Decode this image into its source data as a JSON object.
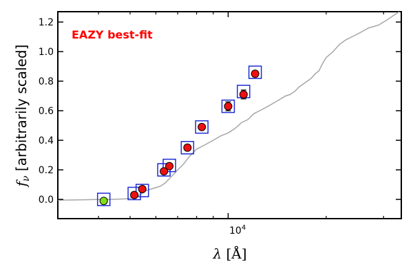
{
  "chart_data": {
    "type": "scatter",
    "title": "",
    "annotation": "EAZY best-fit",
    "annotation_color": "#ff0000",
    "xlabel": "λ [Å]",
    "ylabel": "f_ν [arbitrarily scaled]",
    "ylabel_main": "f",
    "ylabel_sub": "ν",
    "ylabel_rest": " [arbitrarily scaled]",
    "xlabel_lambda": "λ",
    "xlabel_unit": " [Å]",
    "xscale": "log",
    "xlim": [
      3000,
      34000
    ],
    "ylim": [
      -0.13,
      1.27
    ],
    "yticks": [
      0.0,
      0.2,
      0.4,
      0.6,
      0.8,
      1.0,
      1.2
    ],
    "ytick_labels": [
      "0.0",
      "0.2",
      "0.4",
      "0.6",
      "0.8",
      "1.0",
      "1.2"
    ],
    "xtick_major": [
      10000
    ],
    "xtick_major_base": "10",
    "xtick_major_exp": "4",
    "xtick_minor": [
      4000,
      5000,
      6000,
      7000,
      8000,
      9000,
      20000,
      30000
    ],
    "grid": false,
    "colors": {
      "model_line": "#a6a6a6",
      "template_box": "#1f2bd6",
      "detection": "#ee1111",
      "nondetection": "#7fe01a",
      "marker_edge": "#000000"
    },
    "model_sed": {
      "x": [
        3000,
        3300,
        3700,
        4000,
        4300,
        4600,
        4800,
        5000,
        5200,
        5400,
        5600,
        5800,
        6000,
        6200,
        6400,
        6600,
        6800,
        7000,
        7300,
        7600,
        8000,
        8500,
        9000,
        9500,
        10000,
        10500,
        11000,
        11500,
        12000,
        12500,
        13000,
        14000,
        15000,
        15500,
        16000,
        16500,
        17000,
        17500,
        18000,
        18500,
        19000,
        19500,
        20000,
        21000,
        22000,
        23000,
        24000,
        25000,
        26000,
        27000,
        28000,
        29000,
        30000,
        31000,
        32000,
        33000,
        34000
      ],
      "y": [
        -0.005,
        -0.004,
        -0.002,
        0.0,
        0.0,
        0.002,
        0.003,
        0.008,
        0.018,
        0.035,
        0.06,
        0.07,
        0.08,
        0.09,
        0.11,
        0.14,
        0.17,
        0.2,
        0.24,
        0.29,
        0.34,
        0.37,
        0.4,
        0.43,
        0.45,
        0.48,
        0.52,
        0.54,
        0.58,
        0.6,
        0.62,
        0.66,
        0.7,
        0.71,
        0.73,
        0.76,
        0.78,
        0.8,
        0.82,
        0.85,
        0.87,
        0.92,
        0.96,
        1.0,
        1.05,
        1.08,
        1.1,
        1.12,
        1.14,
        1.16,
        1.17,
        1.18,
        1.2,
        1.22,
        1.24,
        1.26,
        1.28
      ]
    },
    "template_fluxes": {
      "x": [
        4150,
        5150,
        5450,
        6350,
        6600,
        7500,
        8300,
        10000,
        11150,
        12100
      ],
      "y": [
        0.0,
        0.04,
        0.06,
        0.2,
        0.23,
        0.35,
        0.49,
        0.63,
        0.73,
        0.86
      ]
    },
    "observed_fluxes": {
      "x": [
        5150,
        5450,
        6350,
        6600,
        7500,
        8300,
        10000,
        11150,
        12100
      ],
      "y": [
        0.03,
        0.07,
        0.19,
        0.225,
        0.35,
        0.49,
        0.63,
        0.71,
        0.85
      ],
      "yerr": [
        0.01,
        0.01,
        0.01,
        0.01,
        0.02,
        0.01,
        0.03,
        0.03,
        0.02
      ]
    },
    "nondetection": {
      "x": [
        4150
      ],
      "y": [
        -0.01
      ]
    }
  }
}
